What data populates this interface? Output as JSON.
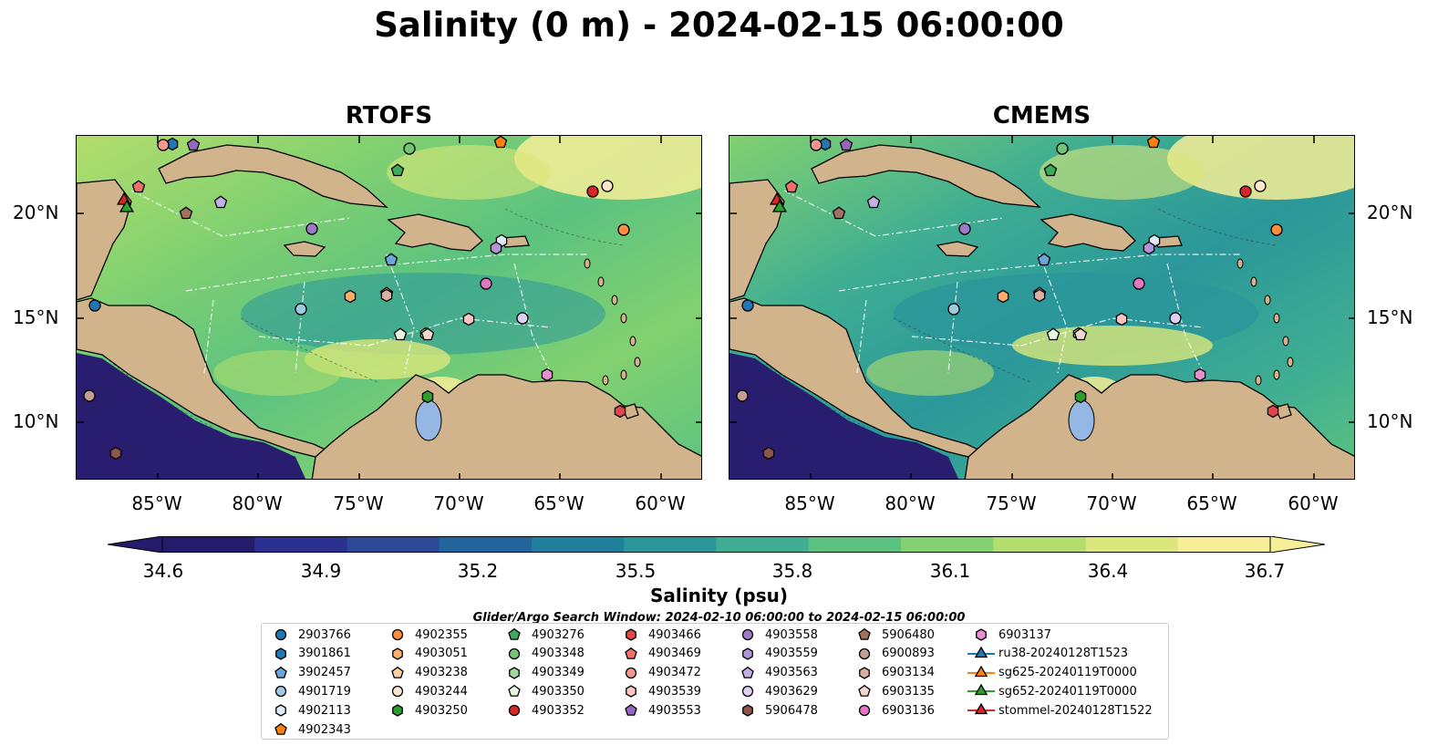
{
  "title": "Salinity (0 m) - 2024-02-15 06:00:00",
  "panels": [
    {
      "title": "RTOFS"
    },
    {
      "title": "CMEMS"
    }
  ],
  "lat_ticks": [
    "20°N",
    "15°N",
    "10°N"
  ],
  "lon_ticks": [
    "85°W",
    "80°W",
    "75°W",
    "70°W",
    "65°W",
    "60°W"
  ],
  "colorbar": {
    "ticks": [
      "34.6",
      "34.9",
      "35.2",
      "35.5",
      "35.8",
      "36.1",
      "36.4",
      "36.7"
    ],
    "label": "Salinity (psu)",
    "colors": [
      "#241c6b",
      "#2b2f8f",
      "#2a4a98",
      "#22659b",
      "#1f7f9c",
      "#2b979a",
      "#3fae92",
      "#5bc280",
      "#83d170",
      "#b3dd6c",
      "#dbe77a",
      "#f7ef97"
    ]
  },
  "search_window": "Glider/Argo Search Window: 2024-02-10 06:00:00 to 2024-02-15 06:00:00",
  "colors": {
    "land": "#d2b48c",
    "deep_low_salinity": "#281d6e",
    "lake": "#95b7e4"
  },
  "legend": [
    {
      "label": "2903766",
      "shape": "circle",
      "color": "#1f77b4"
    },
    {
      "label": "3901861",
      "shape": "hexagon",
      "color": "#1f77b4"
    },
    {
      "label": "3902457",
      "shape": "pentagon",
      "color": "#6aa6d8"
    },
    {
      "label": "4901719",
      "shape": "circle",
      "color": "#9ecae1"
    },
    {
      "label": "4902113",
      "shape": "hexagon",
      "color": "#deebf7"
    },
    {
      "label": "4902343",
      "shape": "pentagon",
      "color": "#ff7f0e"
    },
    {
      "label": "4902355",
      "shape": "circle",
      "color": "#fd8d3c"
    },
    {
      "label": "4903051",
      "shape": "hexagon",
      "color": "#fdae6b"
    },
    {
      "label": "4903238",
      "shape": "pentagon",
      "color": "#fdd0a2"
    },
    {
      "label": "4903244",
      "shape": "circle",
      "color": "#fee6ce"
    },
    {
      "label": "4903250",
      "shape": "hexagon",
      "color": "#2ca02c"
    },
    {
      "label": "4903276",
      "shape": "pentagon",
      "color": "#41ab5d"
    },
    {
      "label": "4903348",
      "shape": "circle",
      "color": "#74c476"
    },
    {
      "label": "4903349",
      "shape": "hexagon",
      "color": "#a1d99b"
    },
    {
      "label": "4903350",
      "shape": "pentagon",
      "color": "#e5f5e0"
    },
    {
      "label": "4903352",
      "shape": "circle",
      "color": "#d62728"
    },
    {
      "label": "4903466",
      "shape": "hexagon",
      "color": "#e0474c"
    },
    {
      "label": "4903469",
      "shape": "pentagon",
      "color": "#ef6f6a"
    },
    {
      "label": "4903472",
      "shape": "circle",
      "color": "#f4978e"
    },
    {
      "label": "4903539",
      "shape": "hexagon",
      "color": "#fcc5c0"
    },
    {
      "label": "4903553",
      "shape": "pentagon",
      "color": "#9467bd"
    },
    {
      "label": "4903558",
      "shape": "circle",
      "color": "#9e7bc9"
    },
    {
      "label": "4903559",
      "shape": "hexagon",
      "color": "#b294d8"
    },
    {
      "label": "4903563",
      "shape": "pentagon",
      "color": "#c5b0e6"
    },
    {
      "label": "4903629",
      "shape": "circle",
      "color": "#dfd0f2"
    },
    {
      "label": "5906478",
      "shape": "hexagon",
      "color": "#8c564b"
    },
    {
      "label": "5906480",
      "shape": "pentagon",
      "color": "#a0715f"
    },
    {
      "label": "6900893",
      "shape": "circle",
      "color": "#c49c94"
    },
    {
      "label": "6903134",
      "shape": "hexagon",
      "color": "#dbb0a0"
    },
    {
      "label": "6903135",
      "shape": "pentagon",
      "color": "#f3d6cc"
    },
    {
      "label": "6903136",
      "shape": "circle",
      "color": "#e377c2"
    },
    {
      "label": "6903137",
      "shape": "hexagon",
      "color": "#e88fcf"
    },
    {
      "label": "ru38-20240128T1523",
      "shape": "triangle-line",
      "color": "#1f77b4"
    },
    {
      "label": "sg625-20240119T0000",
      "shape": "triangle-line",
      "color": "#ff7f0e"
    },
    {
      "label": "sg652-20240119T0000",
      "shape": "triangle-line",
      "color": "#2ca02c"
    },
    {
      "label": "stommel-20240128T1522",
      "shape": "triangle-line",
      "color": "#d62728"
    }
  ]
}
